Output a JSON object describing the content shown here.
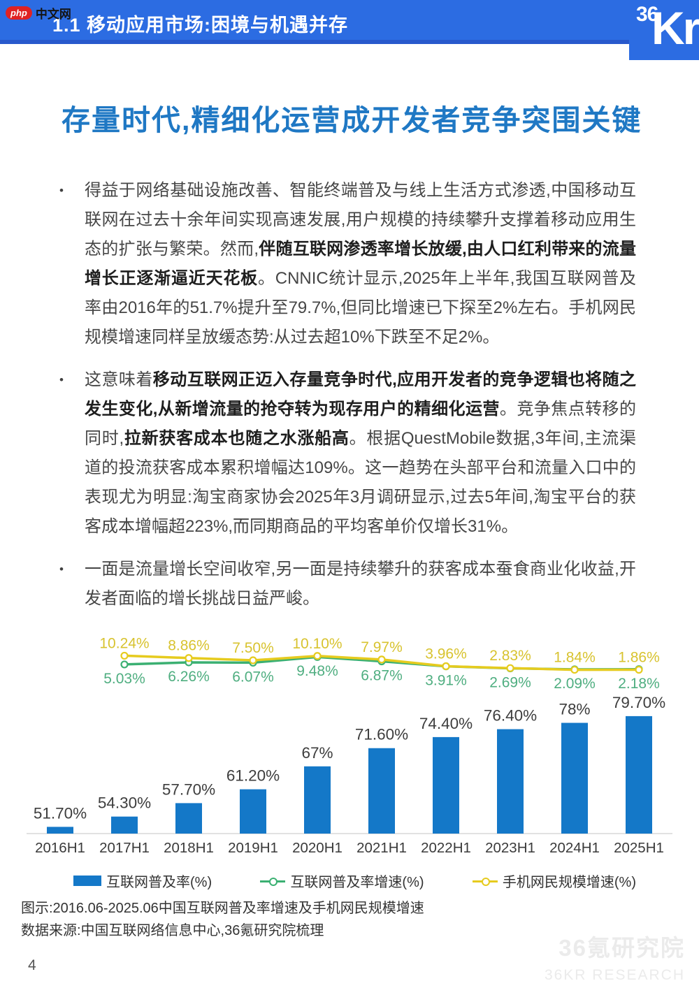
{
  "header": {
    "section_title": "1.1 移动应用市场:困境与机遇并存",
    "logo_small": "36",
    "logo_large": "Kr"
  },
  "watermark_top": {
    "badge": "php",
    "text": "中文网"
  },
  "page_title": "存量时代,精细化运营成开发者竞争突围关键",
  "bullets": [
    {
      "segments": [
        {
          "bold": false,
          "text": "得益于网络基础设施改善、智能终端普及与线上生活方式渗透,中国移动互联网在过去十余年间实现高速发展,用户规模的持续攀升支撑着移动应用生态的扩张与繁荣。然而,"
        },
        {
          "bold": true,
          "text": "伴随互联网渗透率增长放缓,由人口红利带来的流量增长正逐渐逼近天花板"
        },
        {
          "bold": false,
          "text": "。CNNIC统计显示,2025年上半年,我国互联网普及率由2016年的51.7%提升至79.7%,但同比增速已下探至2%左右。手机网民规模增速同样呈放缓态势:从过去超10%下跌至不足2%。"
        }
      ]
    },
    {
      "segments": [
        {
          "bold": false,
          "text": "这意味着"
        },
        {
          "bold": true,
          "text": "移动互联网正迈入存量竞争时代,应用开发者的竞争逻辑也将随之发生变化,从新增流量的抢夺转为现存用户的精细化运营"
        },
        {
          "bold": false,
          "text": "。竞争焦点转移的同时,"
        },
        {
          "bold": true,
          "text": "拉新获客成本也随之水涨船高"
        },
        {
          "bold": false,
          "text": "。根据QuestMobile数据,3年间,主流渠道的投流获客成本累积增幅达109%。这一趋势在头部平台和流量入口中的表现尤为明显:淘宝商家协会2025年3月调研显示,过去5年间,淘宝平台的获客成本增幅超223%,而同期商品的平均客单价仅增长31%。"
        }
      ]
    },
    {
      "segments": [
        {
          "bold": false,
          "text": "一面是流量增长空间收窄,另一面是持续攀升的获客成本蚕食商业化收益,开发者面临的增长挑战日益严峻。"
        }
      ]
    }
  ],
  "chart_data": {
    "type": "bar",
    "categories": [
      "2016H1",
      "2017H1",
      "2018H1",
      "2019H1",
      "2020H1",
      "2021H1",
      "2022H1",
      "2023H1",
      "2024H1",
      "2025H1"
    ],
    "series": [
      {
        "name": "互联网普及率(%)",
        "type": "bar",
        "color": "#1478C8",
        "values": [
          51.7,
          54.3,
          57.7,
          61.2,
          67,
          71.6,
          74.4,
          76.4,
          78,
          79.7
        ],
        "labels": [
          "51.70%",
          "54.30%",
          "57.70%",
          "61.20%",
          "67%",
          "71.60%",
          "74.40%",
          "76.40%",
          "78%",
          "79.70%"
        ]
      },
      {
        "name": "互联网普及率增速(%)",
        "type": "line",
        "color": "#3BB072",
        "label_color": "#4FAE80",
        "start_index": 1,
        "values": [
          5.03,
          6.26,
          6.07,
          9.48,
          6.87,
          3.91,
          2.69,
          2.09,
          2.18
        ],
        "labels": [
          "5.03%",
          "6.26%",
          "6.07%",
          "9.48%",
          "6.87%",
          "3.91%",
          "2.69%",
          "2.09%",
          "2.18%"
        ]
      },
      {
        "name": "手机网民规模增速(%)",
        "type": "line",
        "color": "#E6CB1E",
        "label_color": "#D8C32F",
        "start_index": 1,
        "values": [
          10.24,
          8.86,
          7.5,
          10.1,
          7.97,
          3.96,
          2.83,
          1.84,
          1.86
        ],
        "labels": [
          "10.24%",
          "8.86%",
          "7.50%",
          "10.10%",
          "7.97%",
          "3.96%",
          "2.83%",
          "1.84%",
          "1.86%"
        ]
      }
    ],
    "title": "2016.06-2025.06中国互联网普及率增速及手机网民规模增速",
    "xlabel": "",
    "ylabel": "",
    "bar_axis_baseline": 50,
    "grid": false,
    "legend_position": "bottom"
  },
  "caption": "图示:2016.06-2025.06中国互联网普及率增速及手机网民规模增速",
  "source": "数据来源:中国互联网络信息中心,36氪研究院梳理",
  "watermark_bottom": {
    "cn": "36氪研究院",
    "en": "36KR RESEARCH"
  },
  "page_number": "4",
  "colors": {
    "header_bg": "#2C6CE2",
    "header_stripe": "#2859CC",
    "title_blue": "#1F78C4",
    "bar_blue": "#1478C8",
    "line_green": "#3BB072",
    "line_yellow": "#E6CB1E"
  }
}
